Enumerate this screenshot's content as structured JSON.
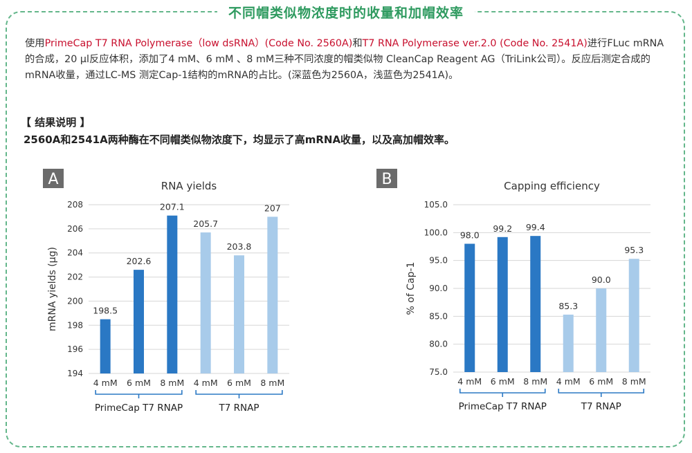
{
  "header": {
    "title": "不同帽类似物浓度时的收量和加帽效率"
  },
  "intro": {
    "p1": "使用",
    "product1": "PrimeCap T7 RNA Polymerase（low dsRNA）(Code No. 2560A)",
    "and": "和",
    "product2": "T7 RNA Polymerase ver.2.0 (Code No. 2541A)",
    "p2": "进行FLuc mRNA的合成，20 μl反应体积，添加了4 mM、6 mM 、8 mM三种不同浓度的帽类似物 CleanCap Reagent AG（TriLink公司）。反应后测定合成的mRNA收量，通过LC-MS 测定Cap-1结构的mRNA的占比。(深蓝色为2560A，浅蓝色为2541A)。"
  },
  "result": {
    "heading": "【 结果说明 】",
    "text": "2560A和2541A两种酶在不同帽类似物浓度下，均显示了高mRNA收量，以及高加帽效率。"
  },
  "colors": {
    "dark_blue": "#2a78c4",
    "light_blue": "#a8cbea",
    "frame_green": "#63b68a",
    "badge_gray": "#6b6b6b"
  },
  "chart_data": [
    {
      "panel": "A",
      "type": "bar",
      "title": "RNA yields",
      "ylabel": "mRNA yields (μg)",
      "ylim": [
        194,
        208
      ],
      "yticks": [
        "194",
        "196",
        "198",
        "200",
        "202",
        "204",
        "206",
        "208"
      ],
      "categories": [
        "4 mM",
        "6 mM",
        "8 mM",
        "4 mM",
        "6 mM",
        "8 mM"
      ],
      "groups": [
        "PrimeCap T7 RNAP",
        "T7 RNAP"
      ],
      "values": [
        198.5,
        202.6,
        207.1,
        205.7,
        203.8,
        207
      ],
      "value_labels": [
        "198.5",
        "202.6",
        "207.1",
        "205.7",
        "203.8",
        "207"
      ],
      "grid": true
    },
    {
      "panel": "B",
      "type": "bar",
      "title": "Capping efficiency",
      "ylabel": "% of Cap-1",
      "ylim": [
        75,
        105
      ],
      "yticks": [
        "75.0",
        "80.0",
        "85.0",
        "90.0",
        "95.0",
        "100.0",
        "105.0"
      ],
      "categories": [
        "4 mM",
        "6 mM",
        "8 mM",
        "4 mM",
        "6 mM",
        "8 mM"
      ],
      "groups": [
        "PrimeCap T7 RNAP",
        "T7 RNAP"
      ],
      "values": [
        98.0,
        99.2,
        99.4,
        85.3,
        90.0,
        95.3
      ],
      "value_labels": [
        "98.0",
        "99.2",
        "99.4",
        "85.3",
        "90.0",
        "95.3"
      ],
      "grid": true
    }
  ]
}
